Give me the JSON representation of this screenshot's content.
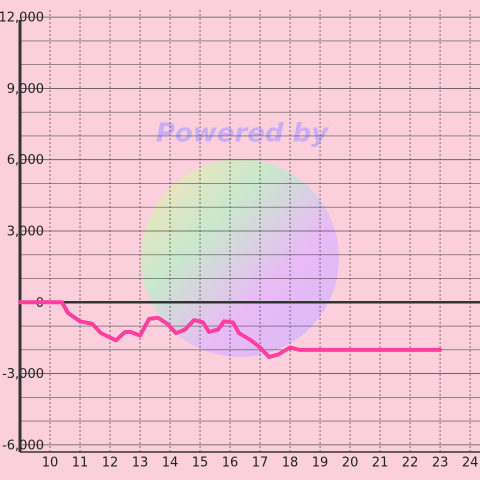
{
  "chart_data": {
    "type": "line",
    "annotation": "Powered by",
    "x": [
      9.0,
      10.0,
      10.4,
      10.6,
      11.0,
      11.4,
      11.7,
      12.2,
      12.5,
      12.7,
      13.0,
      13.3,
      13.6,
      13.9,
      14.2,
      14.5,
      14.8,
      15.1,
      15.3,
      15.6,
      15.8,
      16.1,
      16.3,
      16.7,
      17.0,
      17.3,
      17.6,
      18.0,
      18.3,
      23.0
    ],
    "series": [
      {
        "color": "#ff3fa0",
        "values": [
          0,
          0,
          0,
          -450,
          -800,
          -900,
          -1300,
          -1600,
          -1250,
          -1250,
          -1400,
          -700,
          -650,
          -900,
          -1300,
          -1150,
          -750,
          -850,
          -1250,
          -1150,
          -800,
          -850,
          -1300,
          -1600,
          -1900,
          -2300,
          -2200,
          -1900,
          -2000,
          -2000
        ]
      }
    ],
    "xlim": [
      9.0,
      24.33
    ],
    "xticks": [
      10,
      11,
      12,
      13,
      14,
      15,
      16,
      17,
      18,
      19,
      20,
      21,
      22,
      23,
      24
    ],
    "ylim": [
      -6300,
      12300
    ],
    "yticks": [
      {
        "value": -6000,
        "label": "-6,000"
      },
      {
        "value": -3000,
        "label": "-3,000"
      },
      0,
      {
        "value": 3000,
        "label": "3,000"
      },
      {
        "value": 6000,
        "label": "6,000"
      },
      {
        "value": 9000,
        "label": "9,000"
      },
      {
        "value": 12000,
        "label": "12,000"
      }
    ],
    "grid": true
  }
}
